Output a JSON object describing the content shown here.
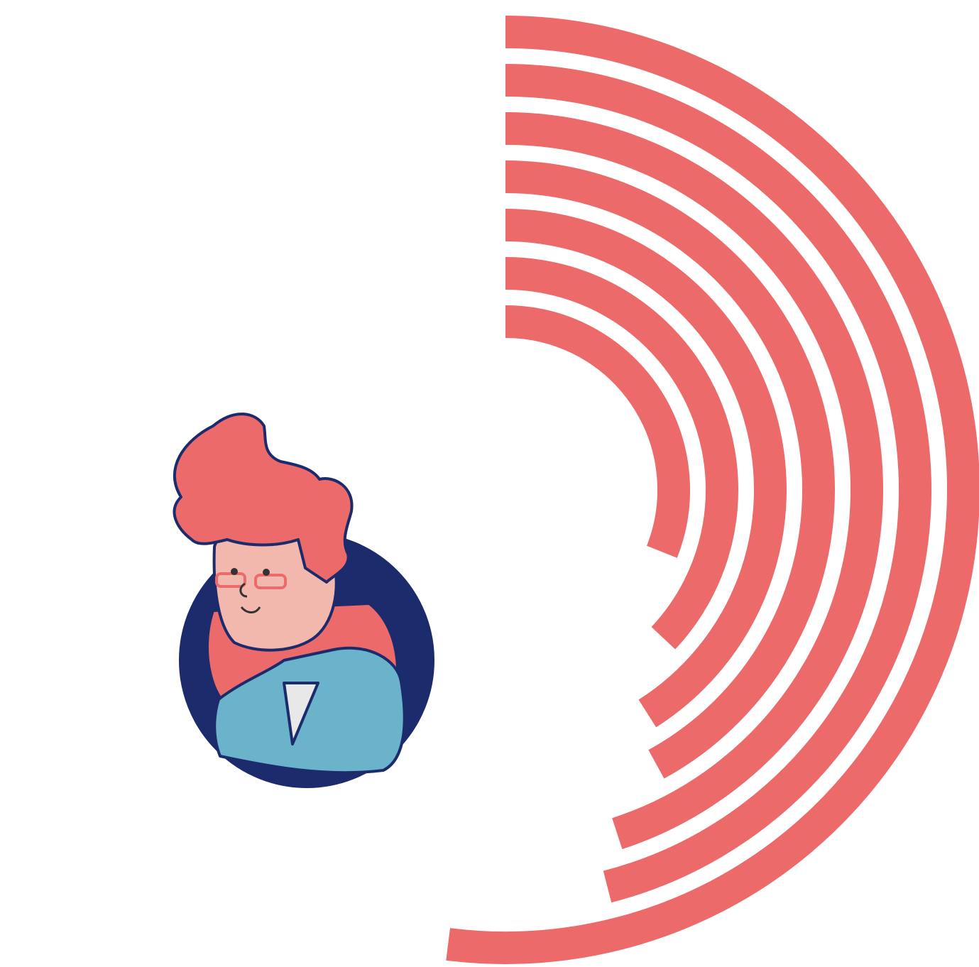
{
  "chart_data": {
    "type": "radial-bar",
    "series": [
      {
        "color": "#ec6a6a",
        "values": [
          52,
          46,
          45,
          42,
          41,
          37,
          31
        ]
      }
    ],
    "ylim": [
      0,
      100
    ]
  }
}
